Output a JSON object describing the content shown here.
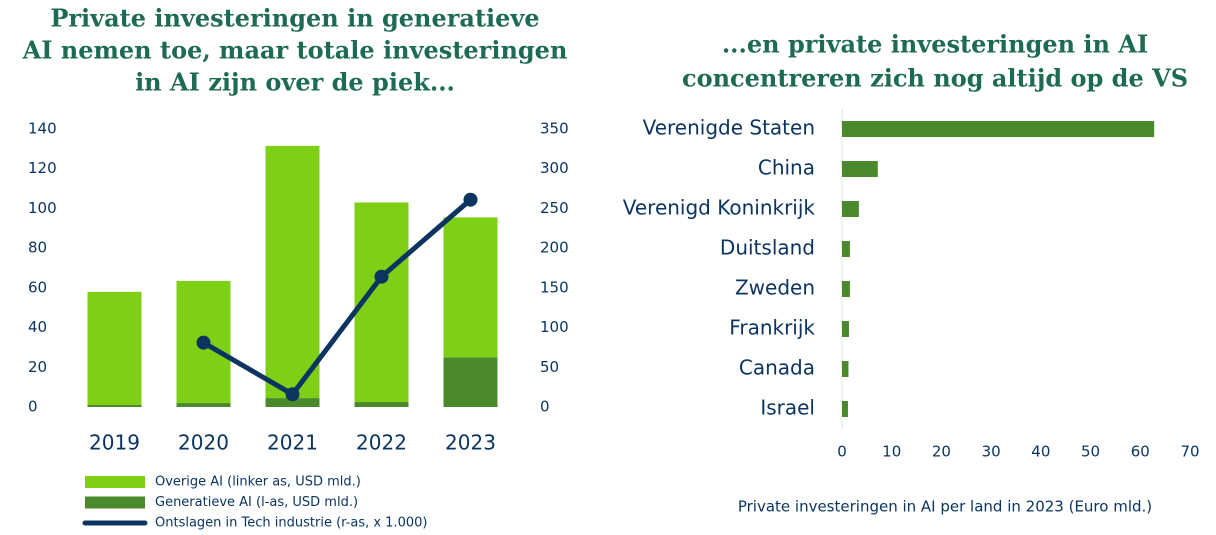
{
  "chart_data": [
    {
      "type": "bar",
      "stacked": true,
      "title": [
        "Private investeringen in generatieve",
        "AI nemen toe, maar totale investeringen",
        "in AI zijn over de piek..."
      ],
      "categories": [
        "2019",
        "2020",
        "2021",
        "2022",
        "2023"
      ],
      "series": [
        {
          "name": "Overige AI (linker as,  USD mld.)",
          "color": "#7ed016",
          "type": "bar",
          "values": [
            57,
            61.5,
            127,
            100.5,
            70.5
          ]
        },
        {
          "name": "Generatieve AI (l-as, USD mld.)",
          "color": "#4a8a2c",
          "type": "bar",
          "values": [
            1,
            2,
            4.5,
            2.5,
            25
          ]
        },
        {
          "name": "Ontslagen in Tech industrie (r-as, x 1.000)",
          "color": "#0b3560",
          "type": "line",
          "axis": "y2",
          "values": [
            null,
            81,
            16,
            164,
            261
          ]
        }
      ],
      "ylim": [
        0,
        140
      ],
      "yticks": [
        0,
        20,
        40,
        60,
        80,
        100,
        120,
        140
      ],
      "y2lim": [
        0,
        350
      ],
      "y2ticks": [
        0,
        50,
        100,
        150,
        200,
        250,
        300,
        350
      ],
      "grid": false,
      "legend": "bottom"
    },
    {
      "type": "hbar",
      "title": [
        "...en private investeringen in AI",
        "concentreren zich nog altijd op de VS"
      ],
      "categories": [
        "Verenigde Staten",
        "China",
        "Verenigd Koninkrijk",
        "Duitsland",
        "Zweden",
        "Frankrijk",
        "Canada",
        "Israel"
      ],
      "values": [
        62.8,
        7.2,
        3.4,
        1.6,
        1.6,
        1.4,
        1.3,
        1.2
      ],
      "color": "#4a8a2c",
      "xlabel": "Private investeringen in AI per land  in 2023 (Euro mld.)",
      "xlim": [
        0,
        70
      ],
      "xticks": [
        0,
        10,
        20,
        30,
        40,
        50,
        60,
        70
      ],
      "grid": false
    }
  ]
}
